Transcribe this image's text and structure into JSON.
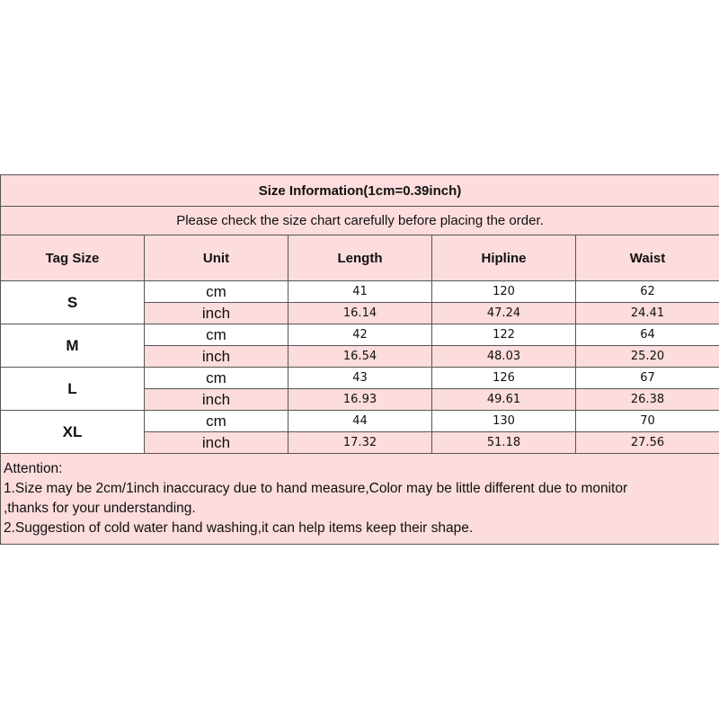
{
  "title": "Size Information(1cm=0.39inch)",
  "subtitle": "Please check the size chart carefully before placing the order.",
  "headers": [
    "Tag Size",
    "Unit",
    "Length",
    "Hipline",
    "Waist"
  ],
  "rows": [
    {
      "size": "S",
      "cm": [
        "41",
        "120",
        "62"
      ],
      "inch": [
        "16.14",
        "47.24",
        "24.41"
      ]
    },
    {
      "size": "M",
      "cm": [
        "42",
        "122",
        "64"
      ],
      "inch": [
        "16.54",
        "48.03",
        "25.20"
      ]
    },
    {
      "size": "L",
      "cm": [
        "43",
        "126",
        "67"
      ],
      "inch": [
        "16.93",
        "49.61",
        "26.38"
      ]
    },
    {
      "size": "XL",
      "cm": [
        "44",
        "130",
        "70"
      ],
      "inch": [
        "17.32",
        "51.18",
        "27.56"
      ]
    }
  ],
  "unit_labels": {
    "cm": "cm",
    "inch": "inch"
  },
  "notes": [
    "Attention:",
    "1.Size may be 2cm/1inch inaccuracy due to hand measure,Color may be little different due to monitor",
    ",thanks for your understanding.",
    "2.Suggestion of cold water hand washing,it can help items keep their shape."
  ],
  "colors": {
    "pink": "#fcdcdc",
    "border": "#555555"
  }
}
